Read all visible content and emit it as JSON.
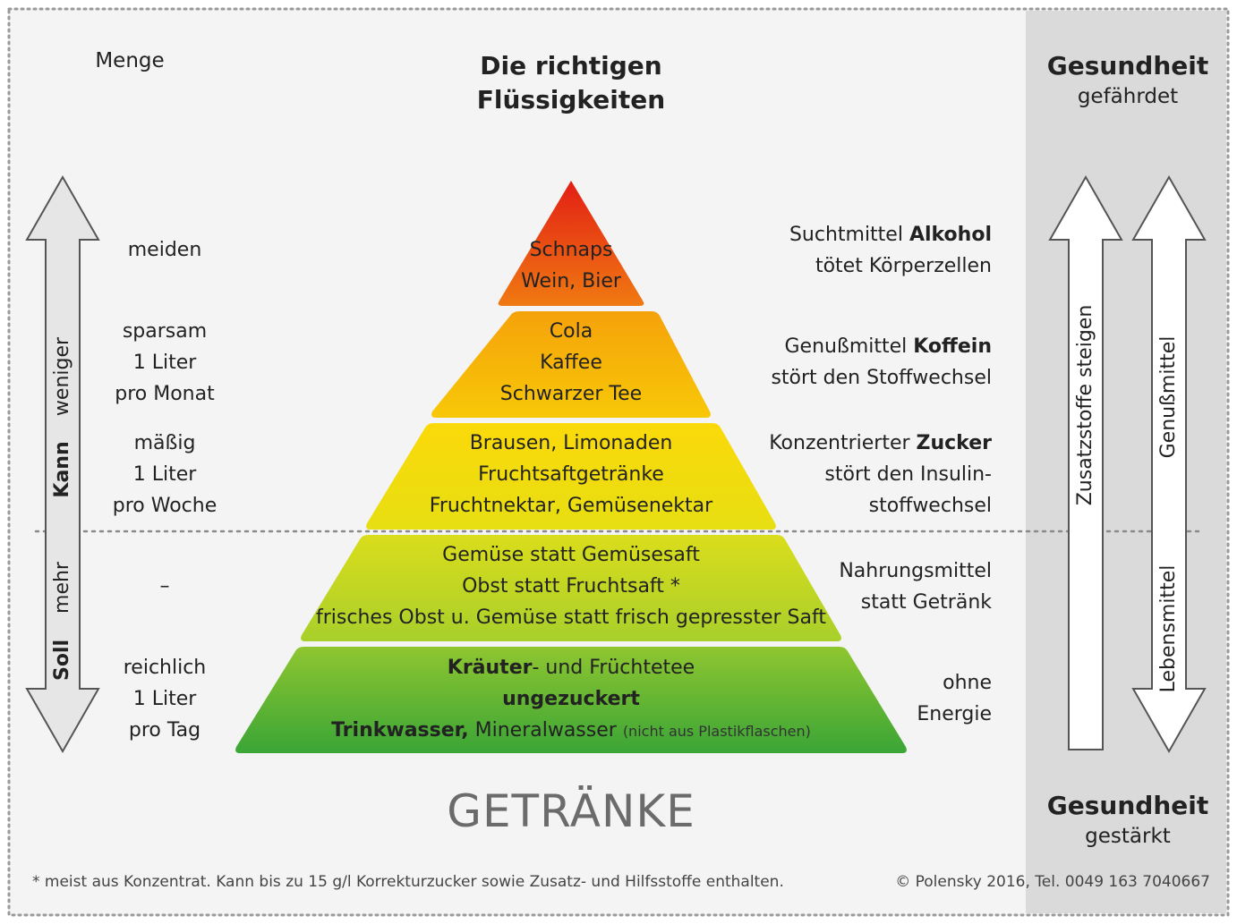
{
  "header": {
    "menge": "Menge",
    "title_line1": "Die richtigen",
    "title_line2": "Flüssigkeiten",
    "top_right_bold": "Gesundheit",
    "top_right_sub": "gefährdet",
    "bottom_right_bold": "Gesundheit",
    "bottom_right_sub": "gestärkt"
  },
  "left_axis": {
    "kann": "Kann",
    "weniger": "weniger",
    "soll": "Soll",
    "mehr": "mehr"
  },
  "amounts": [
    {
      "l1": "meiden",
      "l2": "",
      "l3": ""
    },
    {
      "l1": "sparsam",
      "l2": "1 Liter",
      "l3": "pro Monat"
    },
    {
      "l1": "mäßig",
      "l2": "1 Liter",
      "l3": "pro Woche"
    },
    {
      "l1": "–",
      "l2": "",
      "l3": ""
    },
    {
      "l1": "reichlich",
      "l2": "1 Liter",
      "l3": "pro Tag"
    }
  ],
  "pyramid": [
    {
      "l1": "Schnaps",
      "l2": "Wein, Bier",
      "colors": [
        "#e31e14",
        "#f07a12"
      ]
    },
    {
      "l1": "Cola",
      "l2": "Kaffee",
      "l3": "Schwarzer Tee",
      "colors": [
        "#f5a20a",
        "#f8c807"
      ]
    },
    {
      "l1": "Brausen, Limonaden",
      "l2": "Fruchtsaftgetränke",
      "l3": "Fruchtnektar, Gemüsenektar",
      "colors": [
        "#fbd90a",
        "#e7df12"
      ]
    },
    {
      "l1": "Gemüse statt Gemüsesaft",
      "l2": "Obst statt Fruchtsaft *",
      "l3": "frisches Obst u. Gemüse statt frisch gepresster Saft",
      "colors": [
        "#dadd1b",
        "#a8cf2b"
      ]
    },
    {
      "l1a_bold": "Kräuter",
      "l1b": "- und Früchtetee",
      "l2_bold": "ungezuckert",
      "l3a_bold": "Trinkwasser,",
      "l3b": " Mineralwasser ",
      "l3c_small": "(nicht aus Plastikflaschen)",
      "colors": [
        "#8fc630",
        "#3aa536"
      ]
    }
  ],
  "effects": [
    {
      "a": "Suchtmittel ",
      "b": "Alkohol",
      "c": "tötet Körperzellen"
    },
    {
      "a": "Genußmittel ",
      "b": "Koffein",
      "c": "stört den Stoffwechsel"
    },
    {
      "a": "Konzentrierter ",
      "b": "Zucker",
      "c": "stört den Insulin-",
      "d": "stoffwechsel"
    },
    {
      "a": "Nahrungsmittel",
      "b": "",
      "c": "statt Getränk"
    },
    {
      "a": "ohne",
      "b": "",
      "c": "Energie"
    }
  ],
  "right_arrows": {
    "zusatz": "Zusatzstoffe steigen",
    "genuss": "Genußmittel",
    "lebens": "Lebensmittel"
  },
  "footer": {
    "big": "GETRÄNKE",
    "note": "* meist aus Konzentrat. Kann bis zu 15 g/l Korrekturzucker sowie Zusatz- und Hilfsstoffe enthalten.",
    "copyright": "© Polensky 2016, Tel. 0049 163 7040667"
  },
  "colors": {
    "background": "#f4f4f4",
    "right_band": "#dadada",
    "arrow_fill": "#e6e6e6",
    "border_dots": "#9a9a9a"
  }
}
